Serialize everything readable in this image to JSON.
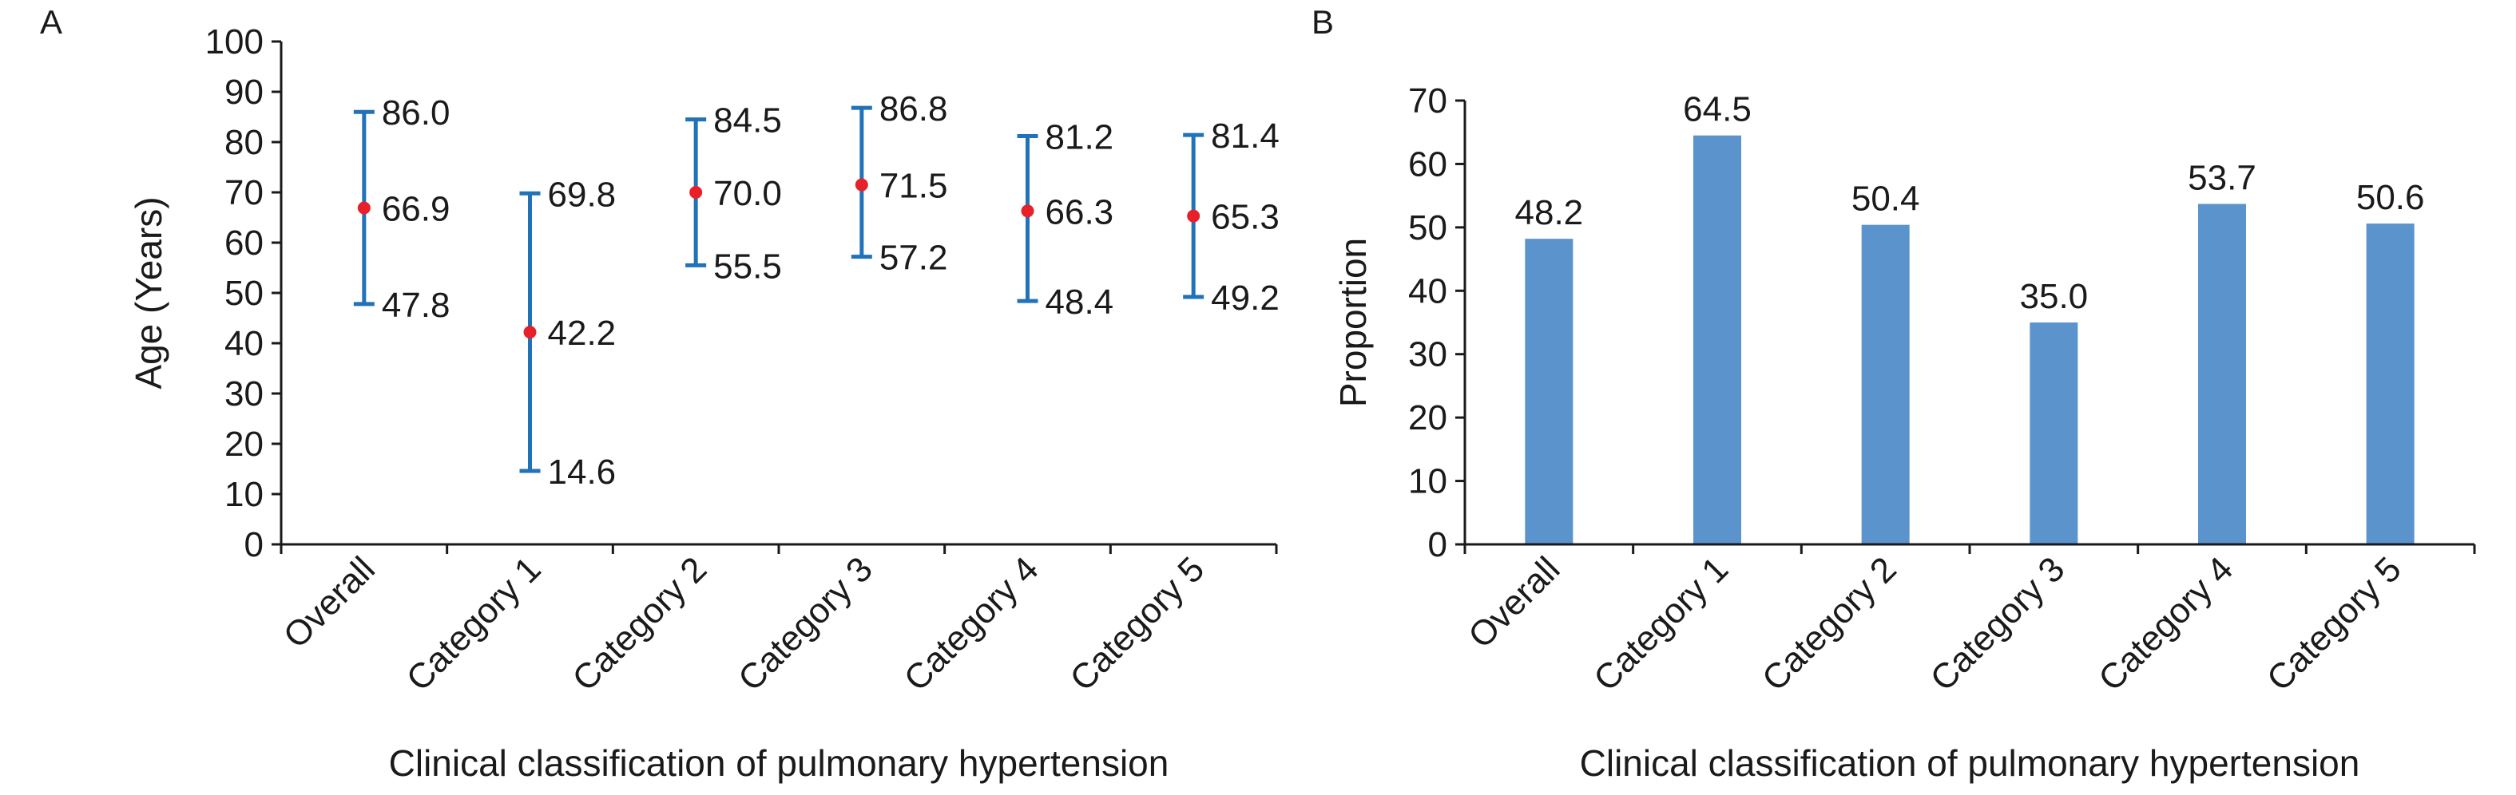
{
  "chart_data": [
    {
      "type": "scatter",
      "panel_label": "A",
      "categories": [
        "Overall",
        "Category 1",
        "Category 2",
        "Category 3",
        "Category 4",
        "Category 5"
      ],
      "series": [
        {
          "values": [
            66.9,
            42.2,
            70.0,
            71.5,
            66.3,
            65.3
          ],
          "color": "#e8202a"
        }
      ],
      "lower": [
        47.8,
        14.6,
        55.5,
        57.2,
        48.4,
        49.2
      ],
      "upper": [
        86.0,
        69.8,
        84.5,
        86.8,
        81.2,
        81.4
      ],
      "lower_labels": [
        "47.8",
        "14.6",
        "55.5",
        "57.2",
        "48.4",
        "49.2"
      ],
      "center_labels": [
        "66.9",
        "42.2",
        "70.0",
        "71.5",
        "66.3",
        "65.3"
      ],
      "upper_labels": [
        "86.0",
        "69.8",
        "84.5",
        "86.8",
        "81.2",
        "81.4"
      ],
      "error_bar_color": "#2172b8",
      "xlabel": "Clinical classification of pulmonary hypertension",
      "ylabel": "Age (Years)",
      "ylim": [
        0,
        100
      ],
      "yticks": [
        "0",
        "10",
        "20",
        "30",
        "40",
        "50",
        "60",
        "70",
        "80",
        "90",
        "100"
      ],
      "grid": false
    },
    {
      "type": "bar",
      "panel_label": "B",
      "categories": [
        "Overall",
        "Category 1",
        "Category 2",
        "Category 3",
        "Category 4",
        "Category 5"
      ],
      "values": [
        48.2,
        64.5,
        50.4,
        35.0,
        53.7,
        50.6
      ],
      "value_labels": [
        "48.2",
        "64.5",
        "50.4",
        "35.0",
        "53.7",
        "50.6"
      ],
      "bar_color": "#5b93cd",
      "xlabel": "Clinical classification of pulmonary hypertension",
      "ylabel": "Proportion",
      "ylim": [
        0,
        70
      ],
      "yticks": [
        "0",
        "10",
        "20",
        "30",
        "40",
        "50",
        "60",
        "70"
      ],
      "grid": false
    }
  ]
}
